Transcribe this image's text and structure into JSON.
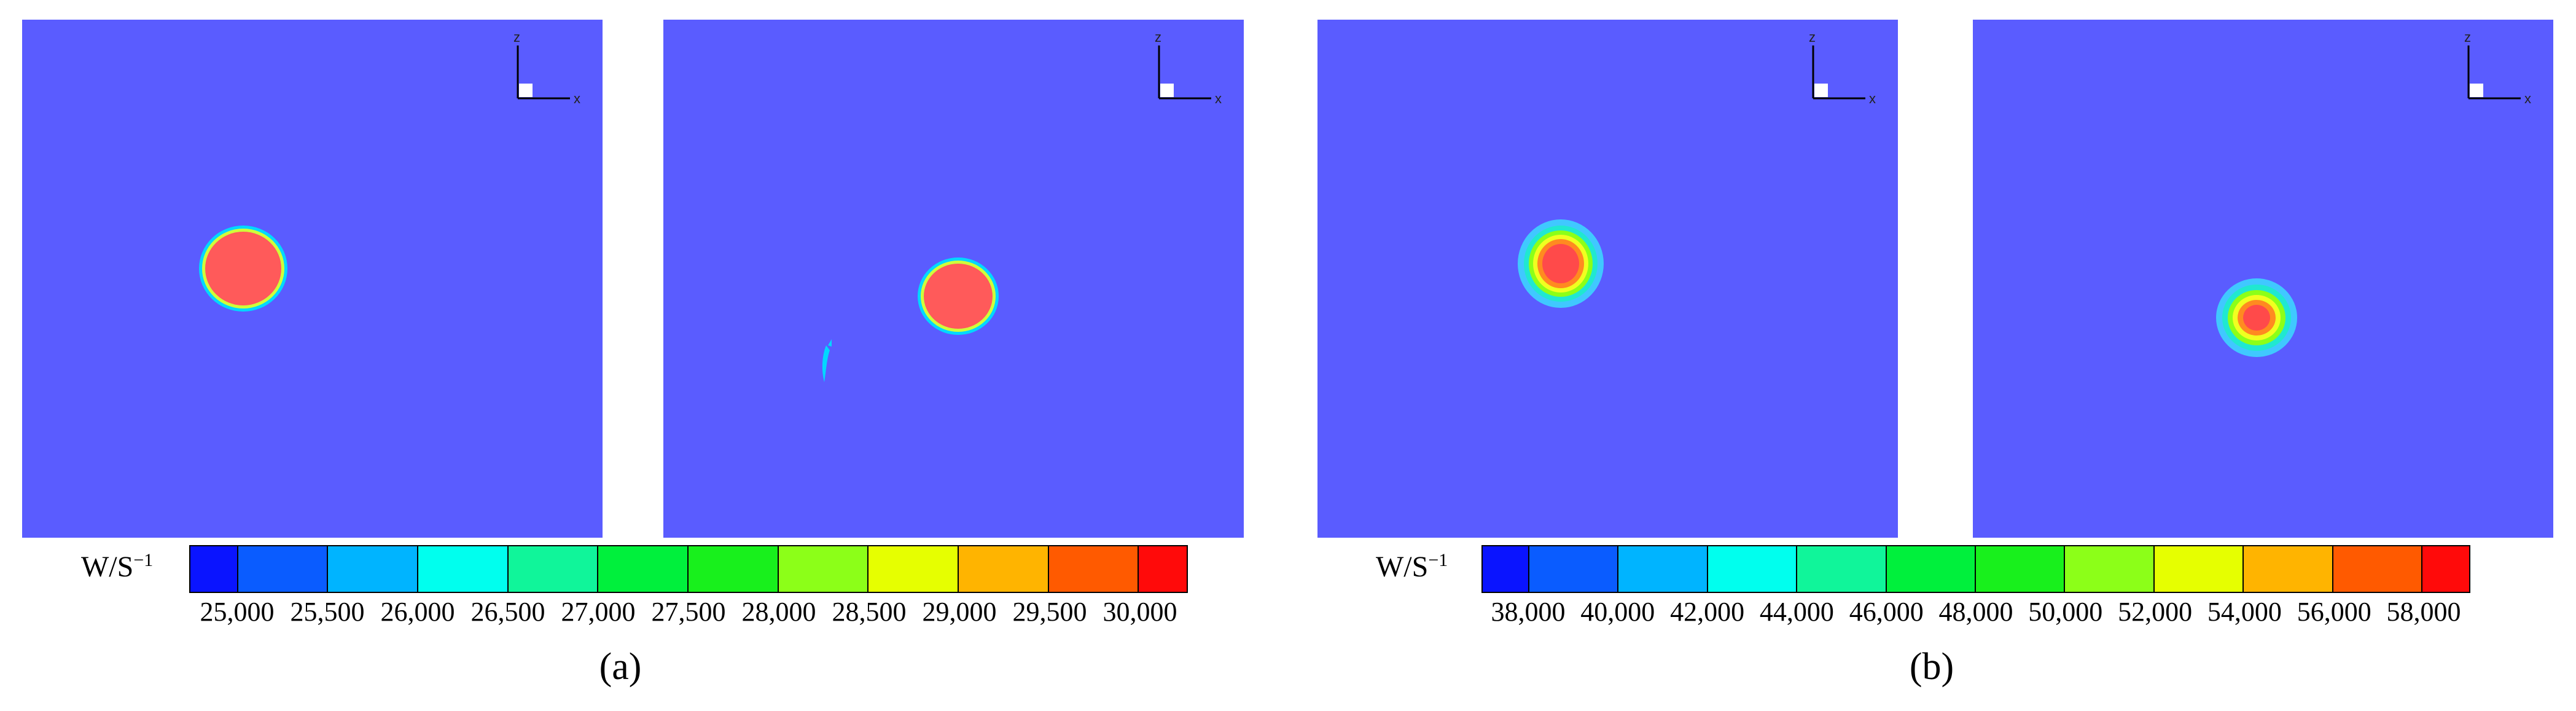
{
  "colors": {
    "background_field": "#5a5cff",
    "hot_core": "#ff5a5a",
    "axes_line": "#000000"
  },
  "panels": [
    {
      "id": "a-left",
      "axis_labels": {
        "vertical": "z",
        "horizontal": "x"
      }
    },
    {
      "id": "a-right",
      "axis_labels": {
        "vertical": "z",
        "horizontal": "x"
      }
    },
    {
      "id": "b-left",
      "axis_labels": {
        "vertical": "z",
        "horizontal": "x"
      }
    },
    {
      "id": "b-right",
      "axis_labels": {
        "vertical": "z",
        "horizontal": "x"
      }
    }
  ],
  "legend_a": {
    "unit_base": "W/S",
    "unit_exponent": "−1",
    "segment_colors": [
      "#0a14ff",
      "#0a5cff",
      "#00b4ff",
      "#00ffee",
      "#10f59a",
      "#00f03c",
      "#18f01c",
      "#8cff18",
      "#e6ff00",
      "#ffb400",
      "#ff5a00",
      "#ff0a0a"
    ],
    "tick_labels": [
      "25,000",
      "25,500",
      "26,000",
      "26,500",
      "27,000",
      "27,500",
      "28,000",
      "28,500",
      "29,000",
      "29,500",
      "30,000"
    ],
    "caption": "(a)"
  },
  "legend_b": {
    "unit_base": "W/S",
    "unit_exponent": "−1",
    "segment_colors": [
      "#0a14ff",
      "#0a5cff",
      "#00b4ff",
      "#00ffee",
      "#10f59a",
      "#00f03c",
      "#18f01c",
      "#8cff18",
      "#e6ff00",
      "#ffb400",
      "#ff5a00",
      "#ff0a0a"
    ],
    "tick_labels": [
      "38,000",
      "40,000",
      "42,000",
      "44,000",
      "46,000",
      "48,000",
      "50,000",
      "52,000",
      "54,000",
      "56,000",
      "58,000"
    ],
    "caption": "(b)"
  }
}
